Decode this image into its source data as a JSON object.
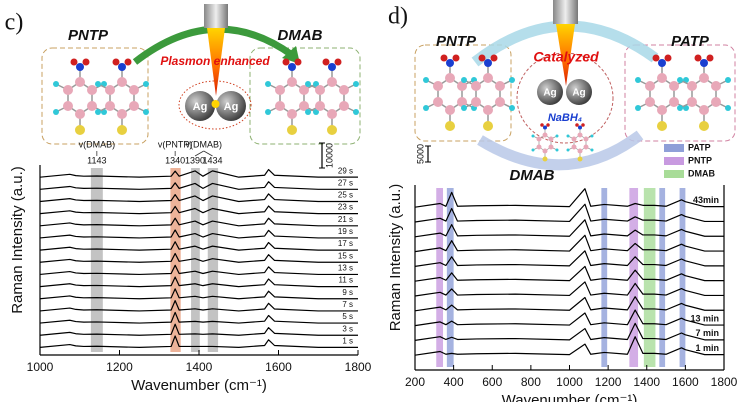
{
  "chart_data": [
    {
      "type": "line",
      "panel": "c)",
      "xlabel": "Wavenumber (cm⁻¹)",
      "ylabel": "Raman Intensity (a.u.)",
      "xlim": [
        1000,
        1800
      ],
      "xticks": [
        1000,
        1200,
        1400,
        1600,
        1800
      ],
      "ylim": [
        0,
        100
      ],
      "scalebar": "10000",
      "molecules": [
        "PNTP",
        "DMAB"
      ],
      "process": "Plasmon enhanced",
      "particles": [
        "Ag",
        "Ag"
      ],
      "bands": [
        {
          "range": [
            1128,
            1158
          ],
          "center": 1143,
          "color": "#b4b4b4"
        },
        {
          "range": [
            1328,
            1354
          ],
          "center": 1340,
          "color": "#e8a080"
        },
        {
          "range": [
            1380,
            1402
          ],
          "center": 1390,
          "color": "#b4b4b4"
        },
        {
          "range": [
            1422,
            1448
          ],
          "center": 1434,
          "color": "#b4b4b4"
        }
      ],
      "annotations": [
        {
          "text": "v(DMAB)",
          "bands": [
            0
          ]
        },
        {
          "text": "v(PNTP)",
          "bands": [
            1
          ]
        },
        {
          "text": "v(DMAB)",
          "bands": [
            2,
            3
          ]
        }
      ],
      "x": [
        1000,
        1075,
        1090,
        1110,
        1143,
        1250,
        1330,
        1340,
        1350,
        1390,
        1410,
        1434,
        1500,
        1565,
        1575,
        1590,
        1700,
        1800
      ],
      "series": [
        {
          "name": "1 s",
          "color": "#000000",
          "values": [
            4,
            5.5,
            4.8,
            4.5,
            4.6,
            4,
            4.5,
            10,
            4.5,
            4.5,
            4.5,
            4.5,
            4,
            5,
            8,
            5,
            4,
            4
          ]
        },
        {
          "name": "3 s",
          "color": "#000000",
          "values": [
            10.4,
            11.9,
            11.2,
            10.9,
            11,
            10.4,
            10.9,
            16.2,
            10.9,
            11.1,
            10.9,
            11.1,
            10.4,
            11.4,
            14.4,
            11.4,
            10.4,
            10.4
          ]
        },
        {
          "name": "5 s",
          "color": "#000000",
          "values": [
            16.8,
            18.3,
            17.6,
            17.3,
            17.4,
            16.8,
            17.3,
            22.4,
            17.3,
            17.7,
            17.3,
            17.7,
            16.8,
            17.8,
            20.8,
            17.8,
            16.8,
            16.8
          ]
        },
        {
          "name": "7 s",
          "color": "#000000",
          "values": [
            23.2,
            24.7,
            24,
            23.7,
            23.8,
            23.2,
            23.7,
            28.6,
            23.7,
            24.3,
            23.7,
            24.3,
            23.2,
            24.2,
            27.2,
            24.2,
            23.2,
            23.2
          ]
        },
        {
          "name": "9 s",
          "color": "#000000",
          "values": [
            29.6,
            31.1,
            30.4,
            30.1,
            30.2,
            29.6,
            30.1,
            34.8,
            30.1,
            30.9,
            30.1,
            30.9,
            29.6,
            30.6,
            33.6,
            30.6,
            29.6,
            29.6
          ]
        },
        {
          "name": "11 s",
          "color": "#000000",
          "values": [
            36,
            37.5,
            36.8,
            36.5,
            36.6,
            36,
            36.5,
            41,
            36.5,
            37.5,
            36.5,
            37.5,
            36,
            37,
            40,
            37,
            36,
            36
          ]
        },
        {
          "name": "13 s",
          "color": "#000000",
          "values": [
            42.4,
            43.9,
            43.2,
            42.9,
            43,
            42.4,
            42.9,
            47.2,
            42.9,
            44.1,
            42.9,
            44.1,
            42.4,
            43.4,
            46.4,
            43.4,
            42.4,
            42.4
          ]
        },
        {
          "name": "15 s",
          "color": "#000000",
          "values": [
            48.8,
            50.3,
            49.6,
            49.3,
            49.4,
            48.8,
            49.3,
            53.4,
            49.3,
            50.7,
            49.3,
            50.7,
            48.8,
            49.8,
            52.8,
            49.8,
            48.8,
            48.8
          ]
        },
        {
          "name": "17 s",
          "color": "#000000",
          "values": [
            55.2,
            56.7,
            56,
            55.7,
            55.8,
            55.2,
            55.7,
            59.6,
            55.7,
            57.3,
            55.7,
            57.3,
            55.2,
            56.2,
            59.2,
            56.2,
            55.2,
            55.2
          ]
        },
        {
          "name": "19 s",
          "color": "#000000",
          "values": [
            61.6,
            63.1,
            62.4,
            62.1,
            62.2,
            61.6,
            62.1,
            65.8,
            62.1,
            63.9,
            62.1,
            63.9,
            61.6,
            62.6,
            65.6,
            62.6,
            61.6,
            61.6
          ]
        },
        {
          "name": "21 s",
          "color": "#000000",
          "values": [
            68,
            69.5,
            68.8,
            68.5,
            68.6,
            68,
            68.5,
            72,
            68.5,
            70.5,
            68.5,
            70.5,
            68,
            69,
            72,
            69,
            68,
            68
          ]
        },
        {
          "name": "23 s",
          "color": "#000000",
          "values": [
            74.4,
            75.9,
            75.2,
            74.9,
            75,
            74.4,
            74.9,
            78.2,
            74.9,
            77.1,
            74.9,
            77.1,
            74.4,
            75.4,
            78.4,
            75.4,
            74.4,
            74.4
          ]
        },
        {
          "name": "25 s",
          "color": "#000000",
          "values": [
            80.8,
            82.3,
            81.6,
            81.3,
            81.4,
            80.8,
            81.3,
            84.4,
            81.3,
            83.7,
            81.3,
            83.7,
            80.8,
            81.8,
            84.8,
            81.8,
            80.8,
            80.8
          ]
        },
        {
          "name": "27 s",
          "color": "#000000",
          "values": [
            87.2,
            88.7,
            88,
            87.7,
            87.8,
            87.2,
            87.7,
            90.6,
            87.7,
            90.3,
            87.7,
            90.3,
            87.2,
            88.2,
            91.2,
            88.2,
            87.2,
            87.2
          ]
        },
        {
          "name": "29 s",
          "color": "#000000",
          "values": [
            93.6,
            95.1,
            94.4,
            94.1,
            94.2,
            93.6,
            94.1,
            96.8,
            94.1,
            96.9,
            94.1,
            96.9,
            93.6,
            94.6,
            97.6,
            94.6,
            93.6,
            93.6
          ]
        }
      ]
    },
    {
      "type": "line",
      "panel": "d)",
      "xlabel": "Wavenumber (cm⁻¹)",
      "ylabel": "Raman Intensity (a.u.)",
      "xlim": [
        200,
        1800
      ],
      "xticks": [
        200,
        400,
        600,
        800,
        1000,
        1200,
        1400,
        1600,
        1800
      ],
      "ylim": [
        0,
        100
      ],
      "scalebar": "5000",
      "molecules": [
        "PNTP",
        "PATP",
        "DMAB"
      ],
      "process": "Catalyzed",
      "particles": [
        "Ag",
        "Ag"
      ],
      "reagent": "NaBH₄",
      "legend": [
        {
          "name": "PATP",
          "color": "#8f9fd8"
        },
        {
          "name": "PNTP",
          "color": "#c89ae0"
        },
        {
          "name": "DMAB",
          "color": "#a8dc98"
        }
      ],
      "bands": [
        {
          "range": [
            310,
            345
          ],
          "legend_item": 1
        },
        {
          "range": [
            365,
            400
          ],
          "legend_item": 0
        },
        {
          "range": [
            1165,
            1195
          ],
          "legend_item": 0
        },
        {
          "range": [
            1310,
            1355
          ],
          "legend_item": 1
        },
        {
          "range": [
            1385,
            1445
          ],
          "legend_item": 2
        },
        {
          "range": [
            1465,
            1495
          ],
          "legend_item": 0
        },
        {
          "range": [
            1570,
            1600
          ],
          "legend_item": 0
        }
      ],
      "x": [
        200,
        330,
        360,
        390,
        420,
        520,
        720,
        1000,
        1080,
        1110,
        1180,
        1300,
        1340,
        1380,
        1440,
        1500,
        1580,
        1600,
        1700,
        1800
      ],
      "series": [
        {
          "name": "1 min",
          "color": "#000000",
          "values": [
            8,
            10,
            8.5,
            9,
            8.5,
            8.8,
            9,
            8.3,
            14,
            8.5,
            9.5,
            8.5,
            18,
            9,
            9,
            8.5,
            12,
            11,
            8.3,
            8.3
          ]
        },
        {
          "name": "7 min",
          "color": "#000000",
          "values": [
            16,
            18,
            16.5,
            17.7,
            16.5,
            16.8,
            17,
            16.3,
            22.4,
            16.5,
            17.5,
            16.5,
            25.2,
            17,
            17,
            16.5,
            20,
            19,
            16.3,
            16.3
          ]
        },
        {
          "name": "13 min",
          "color": "#000000",
          "values": [
            24,
            26,
            24.5,
            26.4,
            24.5,
            24.8,
            25,
            24.3,
            30.8,
            24.5,
            25.5,
            24.5,
            32.4,
            25,
            25,
            24.5,
            28,
            27,
            24.3,
            24.3
          ]
        },
        {
          "color": "#000000",
          "values": [
            32,
            34,
            32.5,
            35.1,
            32.5,
            32.8,
            33,
            32.3,
            39.2,
            32.5,
            33.5,
            32.5,
            39.6,
            33,
            33,
            32.5,
            36,
            35,
            32.3,
            32.3
          ]
        },
        {
          "color": "#000000",
          "values": [
            40,
            42,
            40.5,
            43.8,
            40.5,
            40.8,
            41,
            40.3,
            47.6,
            40.5,
            41.5,
            40.5,
            46.8,
            41,
            41,
            40.5,
            44,
            43,
            40.3,
            40.3
          ]
        },
        {
          "color": "#000000",
          "values": [
            48,
            50,
            48.5,
            52.5,
            48.5,
            48.8,
            49,
            48.3,
            56,
            48.5,
            49.5,
            48.5,
            54,
            49,
            49,
            48.5,
            52,
            51,
            48.3,
            48.3
          ]
        },
        {
          "color": "#000000",
          "values": [
            56,
            58,
            56.5,
            61.2,
            56.5,
            56.8,
            57,
            56.3,
            64.4,
            56.5,
            57.5,
            56.5,
            61.2,
            57,
            57,
            56.5,
            60,
            59,
            56.3,
            56.3
          ]
        },
        {
          "color": "#000000",
          "values": [
            64,
            66,
            64.5,
            69.9,
            64.5,
            64.8,
            65,
            64.3,
            72.8,
            64.5,
            65.5,
            64.5,
            68.4,
            65,
            65,
            64.5,
            68,
            67,
            64.3,
            64.3
          ]
        },
        {
          "color": "#000000",
          "values": [
            72,
            74,
            72.5,
            78.6,
            72.5,
            72.8,
            73,
            72.3,
            81.2,
            72.5,
            73.5,
            72.5,
            75.6,
            73,
            73,
            72.5,
            76,
            75,
            72.3,
            72.3
          ]
        },
        {
          "color": "#000000",
          "values": [
            80,
            82,
            80.5,
            87.3,
            80.5,
            80.8,
            81,
            80.3,
            89.6,
            80.5,
            81.5,
            80.5,
            82.8,
            81,
            81,
            80.5,
            84,
            83,
            80.3,
            80.3
          ]
        },
        {
          "name": "43min",
          "color": "#000000",
          "values": [
            88,
            90,
            88.5,
            96,
            88.5,
            88.8,
            89,
            88.3,
            98,
            88.5,
            89.5,
            88.5,
            90,
            89,
            89,
            88.5,
            92,
            91,
            88.3,
            88.3
          ]
        }
      ]
    }
  ]
}
